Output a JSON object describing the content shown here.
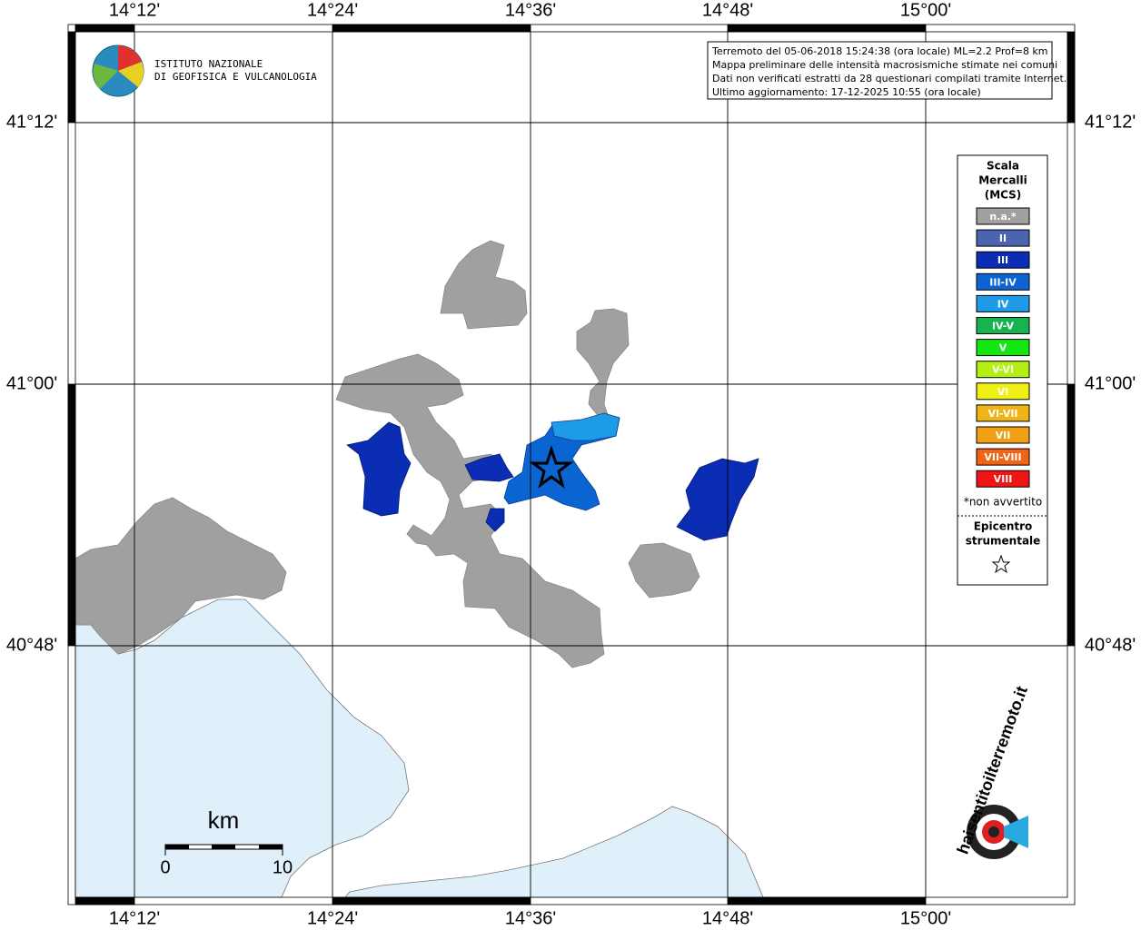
{
  "longitudes": [
    "14°12'",
    "14°24'",
    "14°36'",
    "14°48'",
    "15°00'"
  ],
  "latitudes": [
    "41°12'",
    "41°00'",
    "40°48'"
  ],
  "logo": [
    "ISTITUTO NAZIONALE",
    "DI GEOFISICA E VULCANOLOGIA"
  ],
  "info": [
    "Terremoto del 05-06-2018 15:24:38 (ora locale) ML=2.2 Prof=8 km",
    "Mappa preliminare delle intensità macrosismiche stimate nei comuni",
    "Dati non verificati estratti da 28 questionari compilati tramite Internet.",
    "Ultimo aggiornamento: 17-12-2025 10:55 (ora locale)"
  ],
  "legend": {
    "title": [
      "Scala",
      "Mercalli",
      "(MCS)"
    ],
    "items": [
      {
        "label": "n.a.*",
        "color": "#a0a0a0"
      },
      {
        "label": "II",
        "color": "#4a64b0"
      },
      {
        "label": "III",
        "color": "#0a2db4"
      },
      {
        "label": "III-IV",
        "color": "#0a64d2"
      },
      {
        "label": "IV",
        "color": "#1e9be6"
      },
      {
        "label": "IV-V",
        "color": "#14b450"
      },
      {
        "label": "V",
        "color": "#14e614"
      },
      {
        "label": "V-VI",
        "color": "#b4f014"
      },
      {
        "label": "VI",
        "color": "#f0f014"
      },
      {
        "label": "VI-VII",
        "color": "#f0b414"
      },
      {
        "label": "VII",
        "color": "#f0a014"
      },
      {
        "label": "VII-VIII",
        "color": "#f06414"
      },
      {
        "label": "VIII",
        "color": "#f01414"
      }
    ],
    "footnote": "*non avvertito",
    "epicenter": [
      "Epicentro",
      "strumentale"
    ]
  },
  "scale_bar": {
    "unit": "km",
    "start": "0",
    "end": "10"
  },
  "site_logo": "haisentitoilterremoto.it"
}
